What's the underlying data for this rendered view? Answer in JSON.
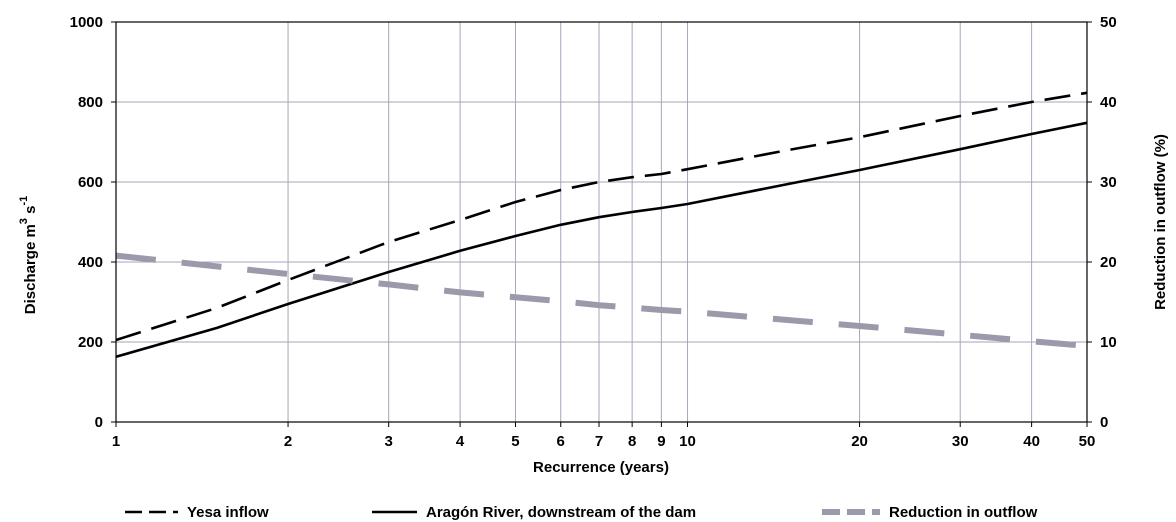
{
  "chart_data": {
    "type": "line",
    "title": "",
    "xlabel": "Recurrence (years)",
    "ylabel": {
      "base": "Discharge m",
      "sup1": "3",
      "mid": " s",
      "sup2": "-1"
    },
    "y2label": "Reduction in outflow (%)",
    "x_scale": "log",
    "xlim": [
      1,
      50
    ],
    "ylim": [
      0,
      1000
    ],
    "y2lim": [
      0,
      50
    ],
    "x_ticks": [
      1,
      2,
      3,
      4,
      5,
      6,
      7,
      8,
      9,
      10,
      20,
      30,
      40,
      50
    ],
    "y_ticks": [
      0,
      200,
      400,
      600,
      800,
      1000
    ],
    "y2_ticks": [
      0,
      10,
      20,
      30,
      40,
      50
    ],
    "grid": true,
    "legend_position": "bottom",
    "series": [
      {
        "name": "Yesa inflow",
        "axis": "left",
        "style": "dashed",
        "color": "#000000",
        "x": [
          1,
          1.5,
          2,
          3,
          4,
          5,
          6,
          7,
          8,
          9,
          10,
          15,
          20,
          30,
          40,
          50
        ],
        "y": [
          205,
          285,
          355,
          450,
          505,
          550,
          580,
          600,
          612,
          620,
          632,
          680,
          712,
          765,
          800,
          823
        ]
      },
      {
        "name": "Aragón River, downstream of the dam",
        "axis": "left",
        "style": "solid",
        "color": "#000000",
        "x": [
          1,
          1.5,
          2,
          3,
          4,
          5,
          6,
          7,
          8,
          9,
          10,
          15,
          20,
          30,
          40,
          50
        ],
        "y": [
          163,
          235,
          295,
          375,
          428,
          465,
          493,
          512,
          525,
          535,
          545,
          595,
          630,
          682,
          720,
          748
        ]
      },
      {
        "name": "Reduction in outflow",
        "axis": "right",
        "style": "dashed",
        "color": "#9a9aab",
        "x": [
          1,
          2,
          3,
          4,
          5,
          6,
          7,
          8,
          9,
          10,
          20,
          30,
          40,
          50
        ],
        "y": [
          20.8,
          18.5,
          17.2,
          16.2,
          15.6,
          15.1,
          14.6,
          14.3,
          14.0,
          13.8,
          12.0,
          10.9,
          10.1,
          9.5
        ]
      }
    ]
  }
}
